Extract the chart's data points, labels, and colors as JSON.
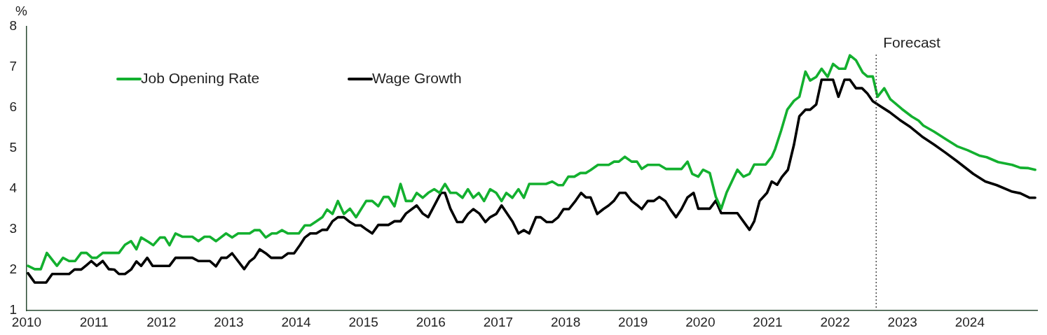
{
  "chart_data": {
    "type": "line",
    "ylabel": "%",
    "xlim": [
      2010,
      2025
    ],
    "xticks": [
      2010,
      2011,
      2012,
      2013,
      2014,
      2015,
      2016,
      2017,
      2018,
      2019,
      2020,
      2021,
      2022,
      2023,
      2024
    ],
    "ylim": [
      1,
      8
    ],
    "yticks": [
      1,
      2,
      3,
      4,
      5,
      6,
      7,
      8
    ],
    "legend": "top left",
    "ref_lines": [
      {
        "axis": "x",
        "value": 2022.61,
        "label": "Forecast",
        "color": "#333333",
        "line_style": "dotted"
      }
    ],
    "series": [
      {
        "name": "Job Opening Rate",
        "color": "#13b02f",
        "x": [
          2010.02,
          2010.12,
          2010.21,
          2010.3,
          2010.45,
          2010.54,
          2010.63,
          2010.72,
          2010.81,
          2010.89,
          2010.97,
          2011.04,
          2011.13,
          2011.37,
          2011.46,
          2011.55,
          2011.63,
          2011.7,
          2011.81,
          2011.88,
          2011.98,
          2012.05,
          2012.12,
          2012.21,
          2012.31,
          2012.46,
          2012.55,
          2012.64,
          2012.72,
          2012.81,
          2012.96,
          2013.05,
          2013.14,
          2013.31,
          2013.38,
          2013.46,
          2013.55,
          2013.64,
          2013.71,
          2013.79,
          2013.88,
          2014.04,
          2014.13,
          2014.21,
          2014.3,
          2014.39,
          2014.46,
          2014.54,
          2014.62,
          2014.71,
          2014.8,
          2014.89,
          2015.04,
          2015.13,
          2015.22,
          2015.3,
          2015.37,
          2015.46,
          2015.55,
          2015.63,
          2015.72,
          2015.79,
          2015.88,
          2015.96,
          2016.05,
          2016.13,
          2016.21,
          2016.29,
          2016.38,
          2016.47,
          2016.55,
          2016.63,
          2016.71,
          2016.79,
          2016.88,
          2016.97,
          2017.05,
          2017.12,
          2017.21,
          2017.3,
          2017.38,
          2017.46,
          2017.71,
          2017.8,
          2017.89,
          2017.96,
          2018.04,
          2018.13,
          2018.22,
          2018.3,
          2018.37,
          2018.48,
          2018.64,
          2018.72,
          2018.79,
          2018.88,
          2018.98,
          2019.06,
          2019.13,
          2019.22,
          2019.39,
          2019.49,
          2019.72,
          2019.81,
          2019.88,
          2019.97,
          2020.04,
          2020.14,
          2020.23,
          2020.31,
          2020.39,
          2020.55,
          2020.64,
          2020.73,
          2020.8,
          2020.97,
          2021.06,
          2021.11,
          2021.2,
          2021.29,
          2021.39,
          2021.47,
          2021.56,
          2021.63,
          2021.72,
          2021.8,
          2021.89,
          2021.97,
          2022.06,
          2022.15,
          2022.22,
          2022.31,
          2022.41,
          2022.48,
          2022.56,
          2022.63,
          2022.73,
          2022.82,
          2022.99,
          2023.14,
          2023.24,
          2023.31,
          2023.47,
          2023.64,
          2023.81,
          2023.97,
          2024.14,
          2024.25,
          2024.42,
          2024.63,
          2024.75,
          2024.87,
          2024.97
        ],
        "values": [
          2.1,
          2.02,
          2.02,
          2.42,
          2.1,
          2.3,
          2.22,
          2.22,
          2.42,
          2.42,
          2.3,
          2.3,
          2.42,
          2.42,
          2.62,
          2.71,
          2.51,
          2.8,
          2.69,
          2.61,
          2.8,
          2.8,
          2.61,
          2.9,
          2.82,
          2.82,
          2.71,
          2.82,
          2.82,
          2.71,
          2.9,
          2.8,
          2.9,
          2.9,
          2.98,
          2.98,
          2.8,
          2.9,
          2.9,
          2.98,
          2.9,
          2.9,
          3.1,
          3.1,
          3.2,
          3.3,
          3.49,
          3.38,
          3.7,
          3.38,
          3.51,
          3.3,
          3.7,
          3.7,
          3.57,
          3.8,
          3.8,
          3.57,
          4.12,
          3.7,
          3.7,
          3.9,
          3.78,
          3.9,
          3.99,
          3.9,
          4.12,
          3.9,
          3.9,
          3.78,
          3.99,
          3.78,
          3.9,
          3.7,
          3.99,
          3.9,
          3.7,
          3.9,
          3.78,
          3.99,
          3.78,
          4.12,
          4.12,
          4.18,
          4.09,
          4.09,
          4.3,
          4.3,
          4.39,
          4.39,
          4.46,
          4.59,
          4.59,
          4.67,
          4.67,
          4.79,
          4.67,
          4.67,
          4.49,
          4.59,
          4.59,
          4.49,
          4.49,
          4.67,
          4.37,
          4.3,
          4.47,
          4.39,
          3.8,
          3.51,
          3.91,
          4.47,
          4.3,
          4.37,
          4.6,
          4.6,
          4.79,
          4.98,
          5.44,
          5.95,
          6.17,
          6.27,
          6.89,
          6.67,
          6.76,
          6.96,
          6.76,
          7.08,
          6.96,
          6.96,
          7.29,
          7.17,
          6.87,
          6.77,
          6.77,
          6.27,
          6.48,
          6.21,
          5.97,
          5.78,
          5.68,
          5.56,
          5.41,
          5.23,
          5.05,
          4.95,
          4.82,
          4.78,
          4.66,
          4.59,
          4.52,
          4.51,
          4.47
        ]
      },
      {
        "name": "Wage Growth",
        "color": "#000000",
        "x": [
          2010.02,
          2010.12,
          2010.29,
          2010.38,
          2010.63,
          2010.71,
          2010.81,
          2010.89,
          2010.96,
          2011.04,
          2011.13,
          2011.22,
          2011.3,
          2011.37,
          2011.46,
          2011.55,
          2011.63,
          2011.7,
          2011.79,
          2011.87,
          2012.12,
          2012.21,
          2012.46,
          2012.55,
          2012.72,
          2012.81,
          2012.89,
          2012.97,
          2013.05,
          2013.23,
          2013.31,
          2013.38,
          2013.46,
          2013.55,
          2013.63,
          2013.79,
          2013.88,
          2013.97,
          2014.06,
          2014.13,
          2014.21,
          2014.3,
          2014.39,
          2014.46,
          2014.54,
          2014.62,
          2014.71,
          2014.8,
          2014.88,
          2014.96,
          2015.05,
          2015.13,
          2015.22,
          2015.37,
          2015.46,
          2015.55,
          2015.63,
          2015.79,
          2015.88,
          2015.96,
          2016.15,
          2016.21,
          2016.29,
          2016.39,
          2016.47,
          2016.55,
          2016.63,
          2016.72,
          2016.81,
          2016.88,
          2016.97,
          2017.05,
          2017.21,
          2017.3,
          2017.38,
          2017.46,
          2017.56,
          2017.63,
          2017.72,
          2017.8,
          2017.89,
          2017.97,
          2018.05,
          2018.15,
          2018.23,
          2018.3,
          2018.37,
          2018.47,
          2018.56,
          2018.64,
          2018.72,
          2018.8,
          2018.89,
          2018.98,
          2019.06,
          2019.13,
          2019.22,
          2019.31,
          2019.39,
          2019.48,
          2019.56,
          2019.64,
          2019.72,
          2019.81,
          2019.9,
          2019.97,
          2020.14,
          2020.23,
          2020.31,
          2020.55,
          2020.73,
          2020.8,
          2020.88,
          2020.99,
          2021.06,
          2021.14,
          2021.21,
          2021.3,
          2021.39,
          2021.47,
          2021.56,
          2021.63,
          2021.72,
          2021.8,
          2021.97,
          2022.05,
          2022.14,
          2022.22,
          2022.31,
          2022.4,
          2022.48,
          2022.56,
          2022.67,
          2022.81,
          2022.96,
          2023.12,
          2023.29,
          2023.47,
          2023.64,
          2023.81,
          2024.05,
          2024.23,
          2024.4,
          2024.63,
          2024.75,
          2024.89,
          2024.97
        ],
        "values": [
          1.92,
          1.69,
          1.69,
          1.9,
          1.9,
          2.01,
          2.01,
          2.12,
          2.22,
          2.1,
          2.22,
          2.02,
          2.01,
          1.9,
          1.9,
          2.01,
          2.21,
          2.1,
          2.3,
          2.1,
          2.1,
          2.3,
          2.3,
          2.22,
          2.22,
          2.09,
          2.3,
          2.3,
          2.41,
          2.02,
          2.21,
          2.3,
          2.51,
          2.41,
          2.3,
          2.3,
          2.41,
          2.41,
          2.62,
          2.8,
          2.9,
          2.9,
          2.99,
          2.99,
          3.2,
          3.3,
          3.3,
          3.18,
          3.1,
          3.1,
          2.99,
          2.9,
          3.11,
          3.11,
          3.2,
          3.2,
          3.39,
          3.59,
          3.39,
          3.3,
          3.9,
          3.9,
          3.51,
          3.18,
          3.18,
          3.38,
          3.5,
          3.39,
          3.18,
          3.3,
          3.38,
          3.59,
          3.2,
          2.9,
          2.98,
          2.9,
          3.3,
          3.3,
          3.18,
          3.18,
          3.3,
          3.5,
          3.5,
          3.71,
          3.9,
          3.79,
          3.79,
          3.38,
          3.5,
          3.59,
          3.71,
          3.9,
          3.9,
          3.7,
          3.6,
          3.5,
          3.7,
          3.7,
          3.8,
          3.7,
          3.48,
          3.3,
          3.5,
          3.79,
          3.9,
          3.51,
          3.51,
          3.71,
          3.4,
          3.4,
          2.99,
          3.2,
          3.7,
          3.9,
          4.18,
          4.1,
          4.29,
          4.47,
          5.09,
          5.79,
          5.95,
          5.95,
          6.08,
          6.69,
          6.69,
          6.27,
          6.69,
          6.69,
          6.48,
          6.48,
          6.35,
          6.16,
          6.04,
          5.89,
          5.7,
          5.52,
          5.29,
          5.09,
          4.89,
          4.68,
          4.37,
          4.18,
          4.09,
          3.93,
          3.89,
          3.78,
          3.78
        ]
      }
    ]
  }
}
